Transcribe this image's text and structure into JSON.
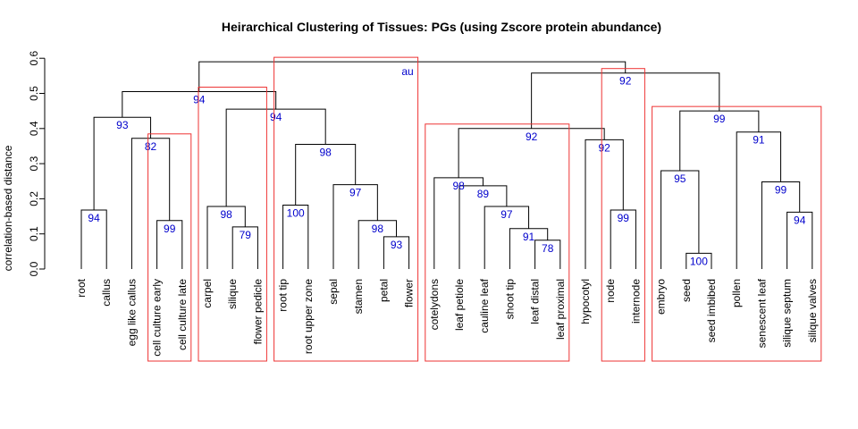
{
  "chart_data": {
    "type": "dendrogram",
    "title": "Heirarchical Clustering of Tissues: PGs (using Zscore protein abundance)",
    "ylabel": "correlation-based distance",
    "ylim": [
      0,
      0.6
    ],
    "yticks": [
      "0.0",
      "0.1",
      "0.2",
      "0.3",
      "0.4",
      "0.5",
      "0.6"
    ],
    "au_header": "au",
    "leaves": [
      "root",
      "callus",
      "egg like callus",
      "cell culture early",
      "cell culture late",
      "carpel",
      "silique",
      "flower pedicle",
      "root tip",
      "root upper zone",
      "sepal",
      "stamen",
      "petal",
      "flower",
      "cotelydons",
      "leaf petiole",
      "cauline leaf",
      "shoot tip",
      "leaf distal",
      "leaf proximal",
      "hypocotyl",
      "node",
      "internode",
      "embryo",
      "seed",
      "seed imbibed",
      "pollen",
      "senescent leaf",
      "silique septum",
      "silique valves"
    ],
    "merges": [
      {
        "children": [
          "L0",
          "L1"
        ],
        "height": 0.168,
        "au": "94"
      },
      {
        "children": [
          "L3",
          "L4"
        ],
        "height": 0.138,
        "au": "99"
      },
      {
        "children": [
          "L2",
          "M1"
        ],
        "height": 0.372,
        "au": "82"
      },
      {
        "children": [
          "M0",
          "M2"
        ],
        "height": 0.432,
        "au": "93"
      },
      {
        "children": [
          "L6",
          "L7"
        ],
        "height": 0.12,
        "au": "79"
      },
      {
        "children": [
          "L5",
          "M4"
        ],
        "height": 0.178,
        "au": "98"
      },
      {
        "children": [
          "L8",
          "L9"
        ],
        "height": 0.182,
        "au": "100"
      },
      {
        "children": [
          "L12",
          "L13"
        ],
        "height": 0.092,
        "au": "93"
      },
      {
        "children": [
          "L11",
          "M7"
        ],
        "height": 0.138,
        "au": "98"
      },
      {
        "children": [
          "L10",
          "M8"
        ],
        "height": 0.24,
        "au": "97"
      },
      {
        "children": [
          "M6",
          "M9"
        ],
        "height": 0.355,
        "au": "98"
      },
      {
        "children": [
          "M5",
          "M10"
        ],
        "height": 0.455,
        "au": "94"
      },
      {
        "children": [
          "M3",
          "M11"
        ],
        "height": 0.505,
        "au": "94"
      },
      {
        "children": [
          "L18",
          "L19"
        ],
        "height": 0.082,
        "au": "78"
      },
      {
        "children": [
          "L17",
          "M13"
        ],
        "height": 0.115,
        "au": "91"
      },
      {
        "children": [
          "L16",
          "M14"
        ],
        "height": 0.178,
        "au": "97"
      },
      {
        "children": [
          "L15",
          "M15"
        ],
        "height": 0.237,
        "au": "89"
      },
      {
        "children": [
          "L14",
          "M16"
        ],
        "height": 0.26,
        "au": "98"
      },
      {
        "children": [
          "L21",
          "L22"
        ],
        "height": 0.168,
        "au": "99"
      },
      {
        "children": [
          "L20",
          "M18"
        ],
        "height": 0.368,
        "au": "92"
      },
      {
        "children": [
          "M17",
          "M19"
        ],
        "height": 0.4,
        "au": "92"
      },
      {
        "children": [
          "L24",
          "L25"
        ],
        "height": 0.045,
        "au": "100"
      },
      {
        "children": [
          "L23",
          "M21"
        ],
        "height": 0.28,
        "au": "95"
      },
      {
        "children": [
          "L28",
          "L29"
        ],
        "height": 0.162,
        "au": "94"
      },
      {
        "children": [
          "L27",
          "M23"
        ],
        "height": 0.248,
        "au": "99"
      },
      {
        "children": [
          "L26",
          "M24"
        ],
        "height": 0.39,
        "au": "91"
      },
      {
        "children": [
          "M22",
          "M25"
        ],
        "height": 0.45,
        "au": "99"
      },
      {
        "children": [
          "M20",
          "M26"
        ],
        "height": 0.558,
        "au": "92"
      },
      {
        "children": [
          "M12",
          "M27"
        ],
        "height": 0.59,
        "au": ""
      }
    ],
    "highlight_clusters": [
      {
        "from": 3,
        "to": 4
      },
      {
        "from": 5,
        "to": 7
      },
      {
        "from": 8,
        "to": 13
      },
      {
        "from": 14,
        "to": 19
      },
      {
        "from": 21,
        "to": 22
      },
      {
        "from": 23,
        "to": 29
      }
    ],
    "colors": {
      "links": "#000000",
      "au_values": "#0000cc",
      "cluster_boxes": "#ee3333"
    }
  }
}
